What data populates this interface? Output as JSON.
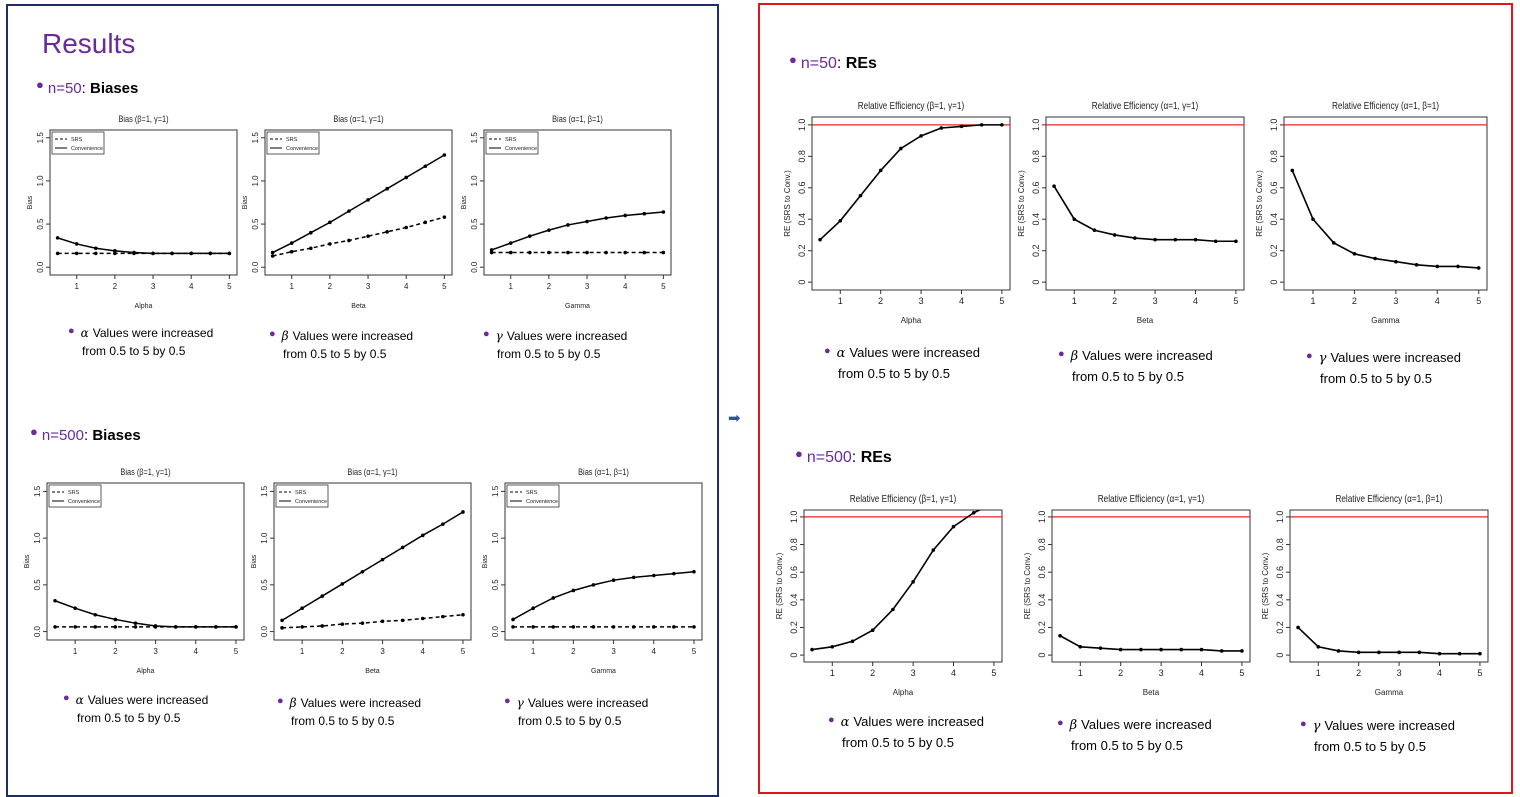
{
  "left": {
    "title": "Results",
    "sections": [
      {
        "n": "n=50",
        "label": "Biases"
      },
      {
        "n": "n=500",
        "label": "Biases"
      }
    ]
  },
  "right": {
    "sections": [
      {
        "n": "n=50",
        "label": "REs"
      },
      {
        "n": "n=500",
        "label": "REs"
      }
    ]
  },
  "arrow_symbol": "➡",
  "notes": [
    {
      "greek": "α",
      "line1": "Values were increased",
      "line2": "from 0.5 to 5 by 0.5"
    },
    {
      "greek": "β",
      "line1": "Values were increased",
      "line2": "from 0.5 to 5 by 0.5"
    },
    {
      "greek": "γ",
      "line1": "Values were increased",
      "line2": "from 0.5 to 5 by 0.5"
    }
  ],
  "colors": {
    "purple": "#6b2a9b",
    "left_border": "#1f2d6b",
    "right_border": "#d9191c",
    "reference_line": "#e8241c",
    "arrow": "#2f5597"
  },
  "chart_data": [
    {
      "type": "line",
      "title": "Bias (β=1, γ=1)",
      "xlabel": "Alpha",
      "ylabel": "Bias",
      "x": [
        0.5,
        1,
        1.5,
        2,
        2.5,
        3,
        3.5,
        4,
        4.5,
        5
      ],
      "xticks": [
        "1",
        "2",
        "3",
        "4",
        "5"
      ],
      "ylim": [
        0,
        1.5
      ],
      "yticks": [
        "0.0",
        "0.5",
        "1.0",
        "1.5"
      ],
      "legend": [
        "SRS",
        "Convenience"
      ],
      "legend_placement": "top-left",
      "series": [
        {
          "name": "SRS",
          "dash": true,
          "values": [
            0.16,
            0.16,
            0.16,
            0.16,
            0.16,
            0.16,
            0.16,
            0.16,
            0.16,
            0.16
          ]
        },
        {
          "name": "Convenience",
          "dash": false,
          "values": [
            0.34,
            0.27,
            0.22,
            0.19,
            0.17,
            0.16,
            0.16,
            0.16,
            0.16,
            0.16
          ]
        }
      ]
    },
    {
      "type": "line",
      "title": "Bias (α=1, γ=1)",
      "xlabel": "Beta",
      "ylabel": "Bias",
      "x": [
        0.5,
        1,
        1.5,
        2,
        2.5,
        3,
        3.5,
        4,
        4.5,
        5
      ],
      "xticks": [
        "1",
        "2",
        "3",
        "4",
        "5"
      ],
      "ylim": [
        0,
        1.5
      ],
      "yticks": [
        "0.0",
        "0.5",
        "1.0",
        "1.5"
      ],
      "legend": [
        "SRS",
        "Convenience"
      ],
      "legend_placement": "top-left",
      "series": [
        {
          "name": "SRS",
          "dash": true,
          "values": [
            0.13,
            0.18,
            0.22,
            0.27,
            0.31,
            0.36,
            0.41,
            0.46,
            0.52,
            0.58
          ]
        },
        {
          "name": "Convenience",
          "dash": false,
          "values": [
            0.17,
            0.28,
            0.4,
            0.52,
            0.65,
            0.78,
            0.91,
            1.04,
            1.17,
            1.3
          ]
        }
      ]
    },
    {
      "type": "line",
      "title": "Bias (α=1, β=1)",
      "xlabel": "Gamma",
      "ylabel": "Bias",
      "x": [
        0.5,
        1,
        1.5,
        2,
        2.5,
        3,
        3.5,
        4,
        4.5,
        5
      ],
      "xticks": [
        "1",
        "2",
        "3",
        "4",
        "5"
      ],
      "ylim": [
        0,
        1.5
      ],
      "yticks": [
        "0.0",
        "0.5",
        "1.0",
        "1.5"
      ],
      "legend": [
        "SRS",
        "Convenience"
      ],
      "legend_placement": "top-left",
      "series": [
        {
          "name": "SRS",
          "dash": true,
          "values": [
            0.17,
            0.17,
            0.17,
            0.17,
            0.17,
            0.17,
            0.17,
            0.17,
            0.17,
            0.17
          ]
        },
        {
          "name": "Convenience",
          "dash": false,
          "values": [
            0.2,
            0.28,
            0.36,
            0.43,
            0.49,
            0.53,
            0.57,
            0.6,
            0.62,
            0.64
          ]
        }
      ]
    },
    {
      "type": "line",
      "title": "Bias (β=1, γ=1)",
      "xlabel": "Alpha",
      "ylabel": "Bias",
      "x": [
        0.5,
        1,
        1.5,
        2,
        2.5,
        3,
        3.5,
        4,
        4.5,
        5
      ],
      "xticks": [
        "1",
        "2",
        "3",
        "4",
        "5"
      ],
      "ylim": [
        0,
        1.5
      ],
      "yticks": [
        "0.0",
        "0.5",
        "1.0",
        "1.5"
      ],
      "legend": [
        "SRS",
        "Convenience"
      ],
      "legend_placement": "top-left",
      "series": [
        {
          "name": "SRS",
          "dash": true,
          "values": [
            0.05,
            0.05,
            0.05,
            0.05,
            0.05,
            0.05,
            0.05,
            0.05,
            0.05,
            0.05
          ]
        },
        {
          "name": "Convenience",
          "dash": false,
          "values": [
            0.33,
            0.25,
            0.18,
            0.13,
            0.09,
            0.06,
            0.05,
            0.05,
            0.05,
            0.05
          ]
        }
      ]
    },
    {
      "type": "line",
      "title": "Bias (α=1, γ=1)",
      "xlabel": "Beta",
      "ylabel": "Bias",
      "x": [
        0.5,
        1,
        1.5,
        2,
        2.5,
        3,
        3.5,
        4,
        4.5,
        5
      ],
      "xticks": [
        "1",
        "2",
        "3",
        "4",
        "5"
      ],
      "ylim": [
        0,
        1.5
      ],
      "yticks": [
        "0.0",
        "0.5",
        "1.0",
        "1.5"
      ],
      "legend": [
        "SRS",
        "Convenience"
      ],
      "legend_placement": "top-left",
      "series": [
        {
          "name": "SRS",
          "dash": true,
          "values": [
            0.04,
            0.05,
            0.06,
            0.08,
            0.09,
            0.11,
            0.12,
            0.14,
            0.16,
            0.18
          ]
        },
        {
          "name": "Convenience",
          "dash": false,
          "values": [
            0.12,
            0.25,
            0.38,
            0.51,
            0.64,
            0.77,
            0.9,
            1.03,
            1.15,
            1.28
          ]
        }
      ]
    },
    {
      "type": "line",
      "title": "Bias (α=1, β=1)",
      "xlabel": "Gamma",
      "ylabel": "Bias",
      "x": [
        0.5,
        1,
        1.5,
        2,
        2.5,
        3,
        3.5,
        4,
        4.5,
        5
      ],
      "xticks": [
        "1",
        "2",
        "3",
        "4",
        "5"
      ],
      "ylim": [
        0,
        1.5
      ],
      "yticks": [
        "0.0",
        "0.5",
        "1.0",
        "1.5"
      ],
      "legend": [
        "SRS",
        "Convenience"
      ],
      "legend_placement": "top-left",
      "series": [
        {
          "name": "SRS",
          "dash": true,
          "values": [
            0.05,
            0.05,
            0.05,
            0.05,
            0.05,
            0.05,
            0.05,
            0.05,
            0.05,
            0.05
          ]
        },
        {
          "name": "Convenience",
          "dash": false,
          "values": [
            0.13,
            0.25,
            0.36,
            0.44,
            0.5,
            0.55,
            0.58,
            0.6,
            0.62,
            0.64
          ]
        }
      ]
    },
    {
      "type": "line",
      "title": "Relative Efficiency (β=1, γ=1)",
      "xlabel": "Alpha",
      "ylabel": "RE (SRS to Conv.)",
      "x": [
        0.5,
        1,
        1.5,
        2,
        2.5,
        3,
        3.5,
        4,
        4.5,
        5
      ],
      "xticks": [
        "1",
        "2",
        "3",
        "4",
        "5"
      ],
      "ylim": [
        0,
        1
      ],
      "yticks": [
        "0",
        "0.2",
        "0.4",
        "0.6",
        "0.8",
        "1.0"
      ],
      "reference_line": 1.0,
      "series": [
        {
          "values": [
            0.27,
            0.39,
            0.55,
            0.71,
            0.85,
            0.93,
            0.98,
            0.99,
            1.0,
            1.0
          ]
        }
      ]
    },
    {
      "type": "line",
      "title": "Relative Efficiency (α=1, γ=1)",
      "xlabel": "Beta",
      "ylabel": "RE (SRS to Conv.)",
      "x": [
        0.5,
        1,
        1.5,
        2,
        2.5,
        3,
        3.5,
        4,
        4.5,
        5
      ],
      "xticks": [
        "1",
        "2",
        "3",
        "4",
        "5"
      ],
      "ylim": [
        0,
        1
      ],
      "yticks": [
        "0",
        "0.2",
        "0.4",
        "0.6",
        "0.8",
        "1.0"
      ],
      "reference_line": 1.0,
      "series": [
        {
          "values": [
            0.61,
            0.4,
            0.33,
            0.3,
            0.28,
            0.27,
            0.27,
            0.27,
            0.26,
            0.26
          ]
        }
      ]
    },
    {
      "type": "line",
      "title": "Relative Efficiency (α=1, β=1)",
      "xlabel": "Gamma",
      "ylabel": "RE (SRS to Conv.)",
      "x": [
        0.5,
        1,
        1.5,
        2,
        2.5,
        3,
        3.5,
        4,
        4.5,
        5
      ],
      "xticks": [
        "1",
        "2",
        "3",
        "4",
        "5"
      ],
      "ylim": [
        0,
        1
      ],
      "yticks": [
        "0",
        "0.2",
        "0.4",
        "0.6",
        "0.8",
        "1.0"
      ],
      "reference_line": 1.0,
      "series": [
        {
          "values": [
            0.71,
            0.4,
            0.25,
            0.18,
            0.15,
            0.13,
            0.11,
            0.1,
            0.1,
            0.09
          ]
        }
      ]
    },
    {
      "type": "line",
      "title": "Relative Efficiency (β=1, γ=1)",
      "xlabel": "Alpha",
      "ylabel": "RE (SRS to Conv.)",
      "x": [
        0.5,
        1,
        1.5,
        2,
        2.5,
        3,
        3.5,
        4,
        4.5,
        5
      ],
      "xticks": [
        "1",
        "2",
        "3",
        "4",
        "5"
      ],
      "ylim": [
        0,
        1
      ],
      "yticks": [
        "0",
        "0.2",
        "0.4",
        "0.6",
        "0.8",
        "1.0"
      ],
      "reference_line": 1.0,
      "series": [
        {
          "values": [
            0.04,
            0.06,
            0.1,
            0.18,
            0.33,
            0.53,
            0.76,
            0.93,
            1.03,
            1.1
          ]
        }
      ]
    },
    {
      "type": "line",
      "title": "Relative Efficiency (α=1, γ=1)",
      "xlabel": "Beta",
      "ylabel": "RE (SRS to Conv.)",
      "x": [
        0.5,
        1,
        1.5,
        2,
        2.5,
        3,
        3.5,
        4,
        4.5,
        5
      ],
      "xticks": [
        "1",
        "2",
        "3",
        "4",
        "5"
      ],
      "ylim": [
        0,
        1
      ],
      "yticks": [
        "0",
        "0.2",
        "0.4",
        "0.6",
        "0.8",
        "1.0"
      ],
      "reference_line": 1.0,
      "series": [
        {
          "values": [
            0.14,
            0.06,
            0.05,
            0.04,
            0.04,
            0.04,
            0.04,
            0.04,
            0.03,
            0.03
          ]
        }
      ]
    },
    {
      "type": "line",
      "title": "Relative Efficiency (α=1, β=1)",
      "xlabel": "Gamma",
      "ylabel": "RE (SRS to Conv.)",
      "x": [
        0.5,
        1,
        1.5,
        2,
        2.5,
        3,
        3.5,
        4,
        4.5,
        5
      ],
      "xticks": [
        "1",
        "2",
        "3",
        "4",
        "5"
      ],
      "ylim": [
        0,
        1
      ],
      "yticks": [
        "0",
        "0.2",
        "0.4",
        "0.6",
        "0.8",
        "1.0"
      ],
      "reference_line": 1.0,
      "series": [
        {
          "values": [
            0.2,
            0.06,
            0.03,
            0.02,
            0.02,
            0.02,
            0.02,
            0.01,
            0.01,
            0.01
          ]
        }
      ]
    }
  ]
}
